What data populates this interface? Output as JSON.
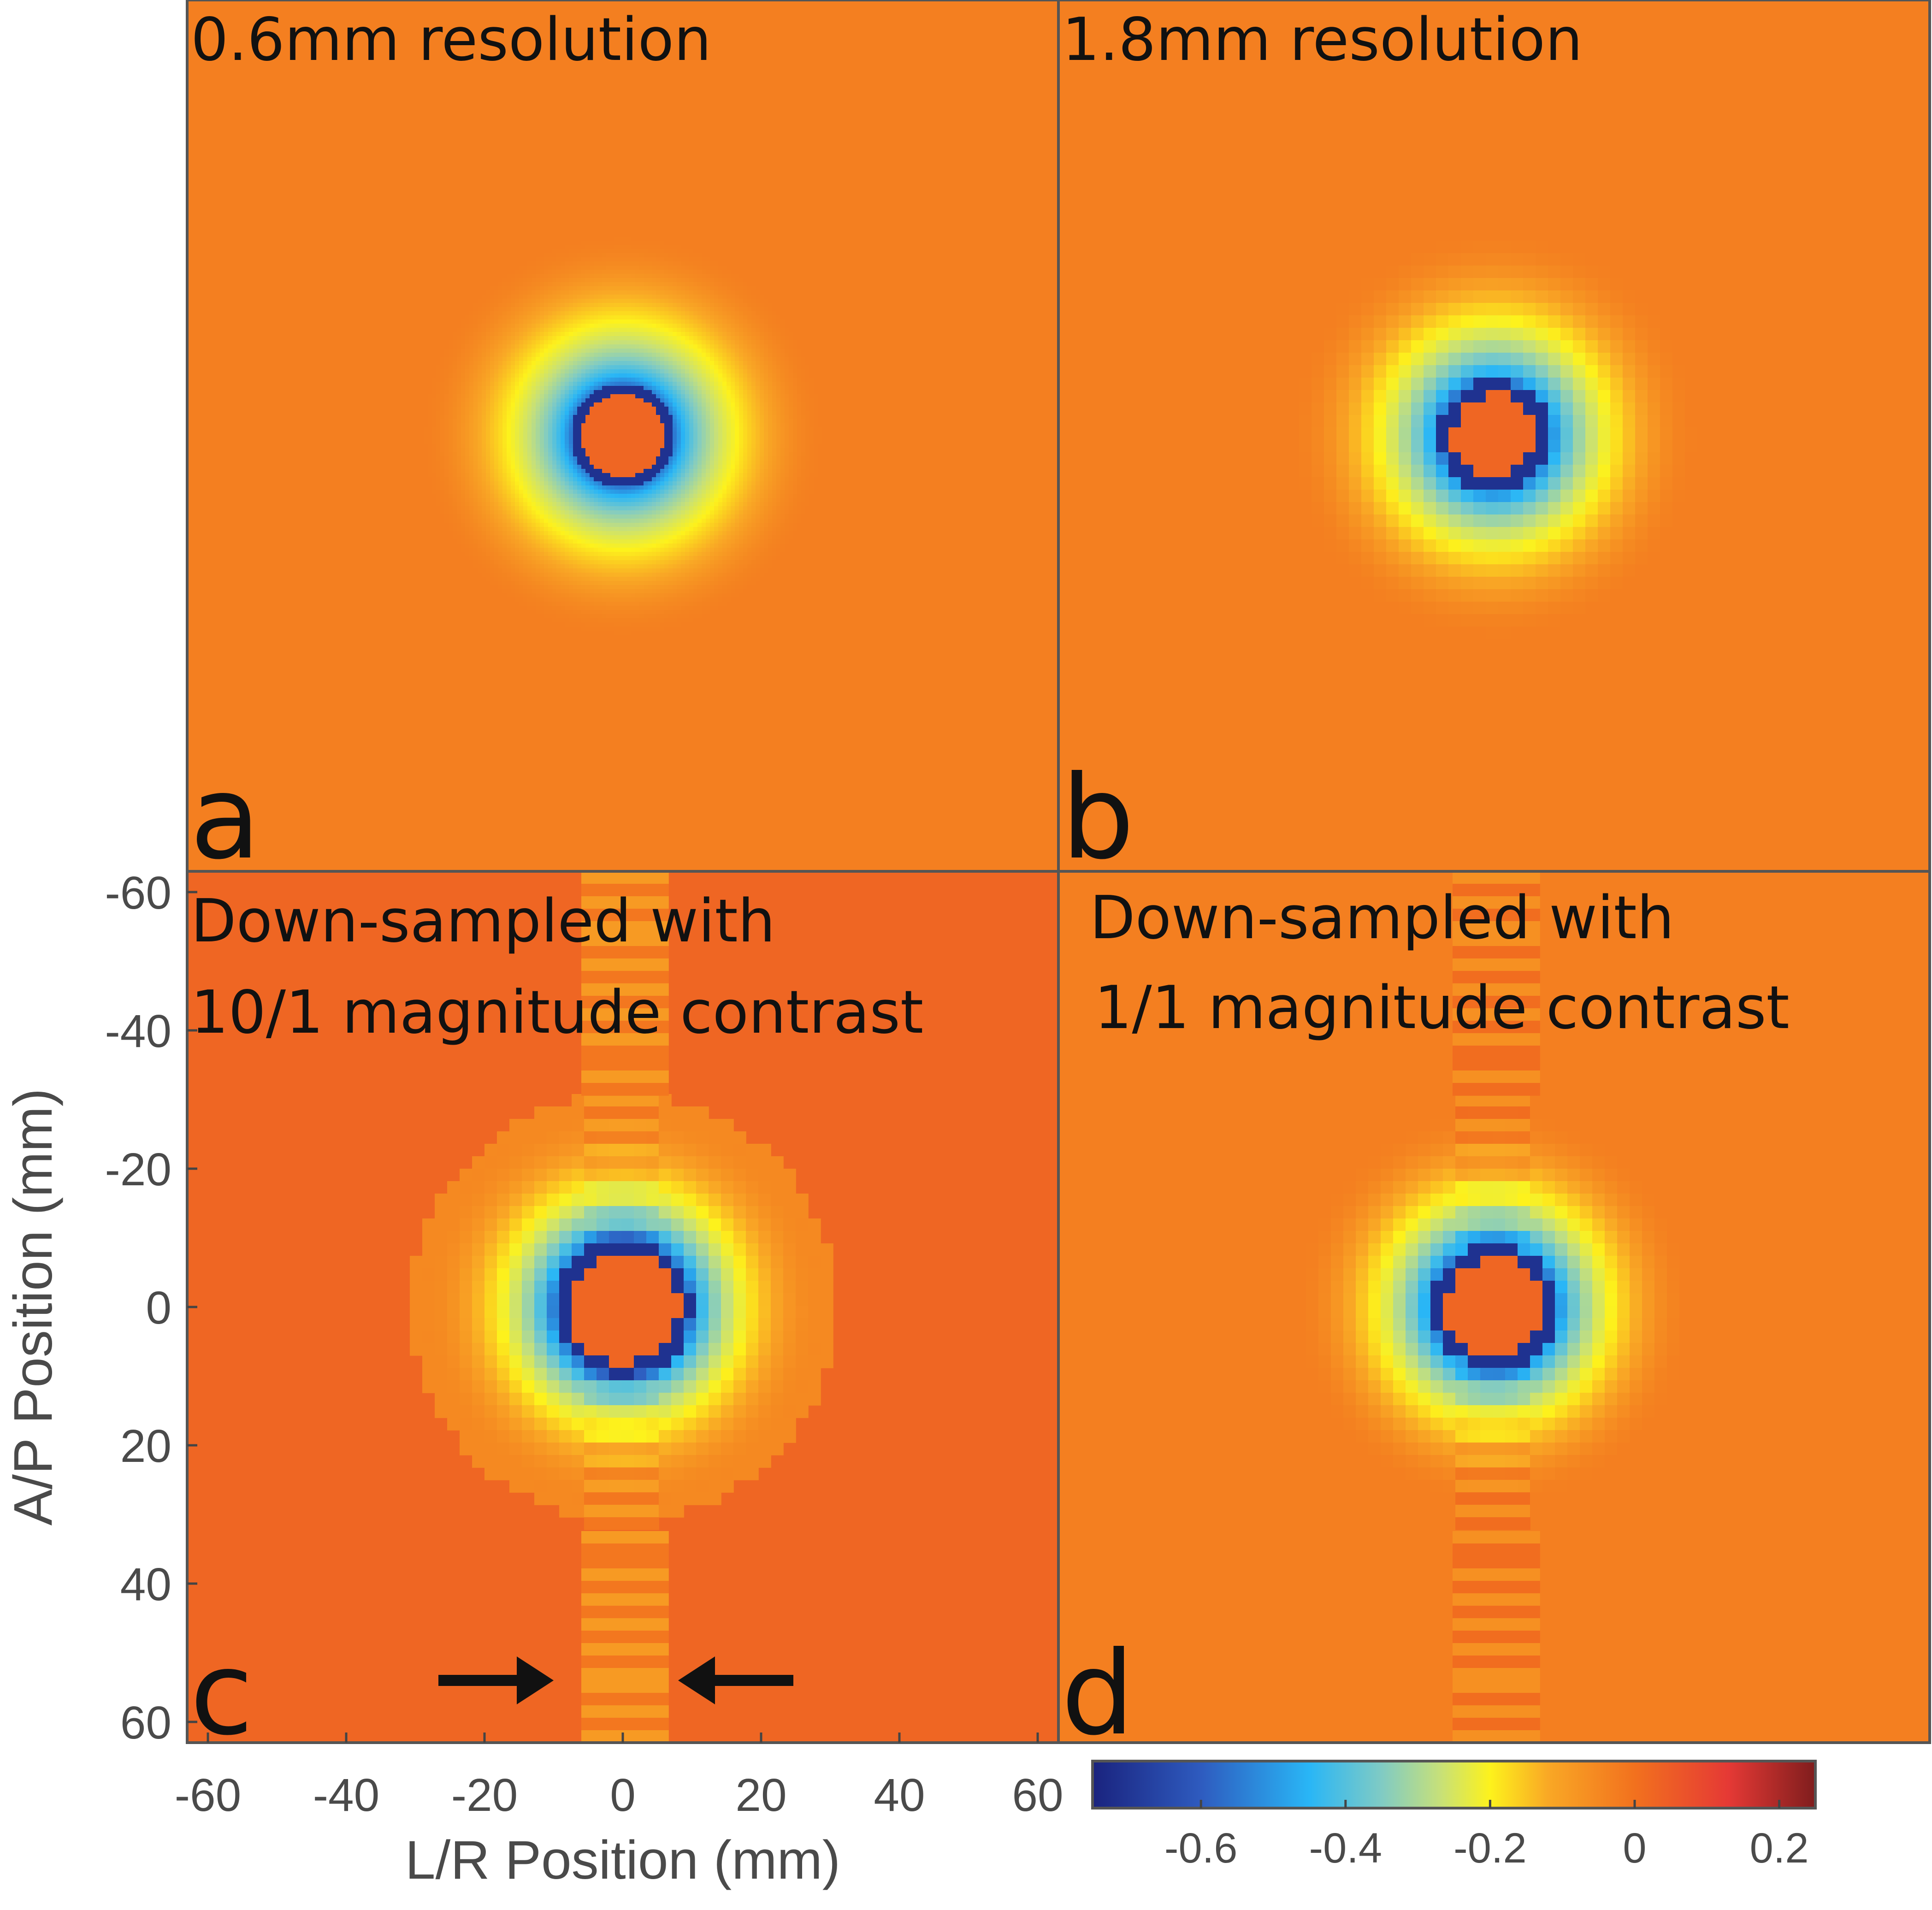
{
  "colors": {
    "background": "#f08024",
    "colormap": [
      "#1a237e",
      "#2e5bbf",
      "#29b6f6",
      "#80cbc4",
      "#c6e07a",
      "#fdf21c",
      "#f9a825",
      "#f2711e",
      "#e53935",
      "#7f1d1d"
    ]
  },
  "chart_data": {
    "type": "heatmap",
    "field": "simulated susceptibility phase map of a circular object",
    "x_axis": {
      "label": "L/R Position (mm)",
      "range": [
        -63,
        63
      ],
      "ticks": [
        -60,
        -40,
        -20,
        0,
        20,
        40,
        60
      ],
      "tick_labels": [
        "-60",
        "-40",
        "-20",
        "0",
        "20",
        "40",
        "60"
      ]
    },
    "y_axis": {
      "label": "A/P Position (mm)",
      "range": [
        -63,
        63
      ],
      "inverted": true,
      "ticks": [
        -60,
        -40,
        -20,
        0,
        20,
        40,
        60
      ],
      "tick_labels": [
        "-60",
        "-40",
        "-20",
        "0",
        "20",
        "40",
        "60"
      ]
    },
    "colorbar": {
      "range": [
        -0.75,
        0.25
      ],
      "ticks": [
        -0.6,
        -0.4,
        -0.2,
        0,
        0.2
      ],
      "tick_labels": [
        "-0.6",
        "-0.4",
        "-0.2",
        "0",
        "0.2"
      ]
    },
    "panels": [
      {
        "letter": "a",
        "title_lines": [
          "0.6mm resolution"
        ],
        "background": 0.0,
        "object_radius_mm": 6,
        "ring_width_mm": 1.5,
        "halo_radius_mm": 30,
        "pixel_mm": 0.6,
        "streaks": false,
        "column_artifact": false
      },
      {
        "letter": "b",
        "title_lines": [
          "1.8mm resolution"
        ],
        "background": 0.0,
        "object_radius_mm": 6,
        "ring_width_mm": 2,
        "halo_radius_mm": 30,
        "pixel_mm": 1.8,
        "streaks": false,
        "column_artifact": false
      },
      {
        "letter": "c",
        "title_lines": [
          "Down-sampled with",
          "10/1 magnitude contrast"
        ],
        "background": 0.03,
        "object_radius_mm": 8,
        "ring_width_mm": 2,
        "halo_radius_mm": 29,
        "pixel_mm": 1.8,
        "streaks": true,
        "column_artifact": true,
        "arrows": [
          {
            "direction": "right",
            "at_x_mm": -10,
            "at_y_mm": 54
          },
          {
            "direction": "left",
            "at_x_mm": 8,
            "at_y_mm": 54
          }
        ]
      },
      {
        "letter": "d",
        "title_lines": [
          "Down-sampled with",
          "1/1 magnitude contrast"
        ],
        "background": 0.0,
        "object_radius_mm": 7,
        "ring_width_mm": 2,
        "halo_radius_mm": 29,
        "pixel_mm": 1.8,
        "streaks": false,
        "column_artifact": true
      }
    ]
  }
}
